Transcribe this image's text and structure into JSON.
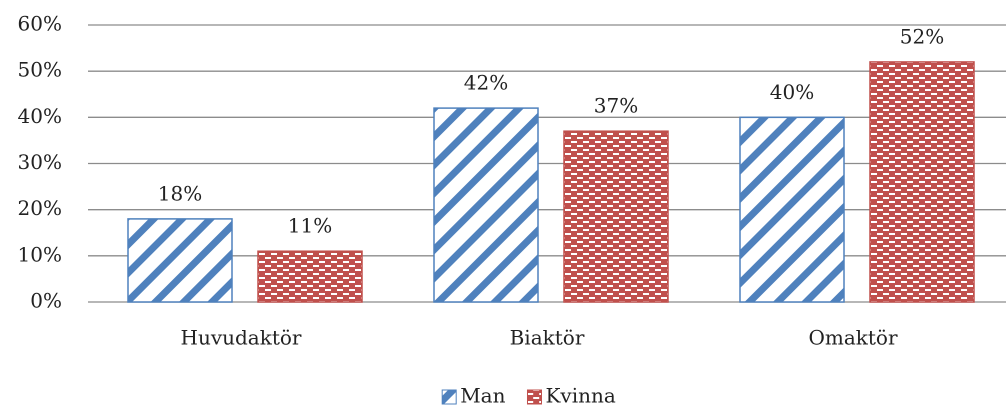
{
  "chart_data": {
    "type": "bar",
    "categories": [
      "Huvudaktör",
      "Biaktör",
      "Omaktör"
    ],
    "series": [
      {
        "name": "Man",
        "color": "#4f81bd",
        "values": [
          18,
          42,
          40
        ],
        "value_labels": [
          "18%",
          "42%",
          "40%"
        ]
      },
      {
        "name": "Kvinna",
        "color": "#c0504d",
        "values": [
          11,
          37,
          52
        ],
        "value_labels": [
          "11%",
          "37%",
          "52%"
        ]
      }
    ],
    "ylim": [
      0,
      60
    ],
    "yticks": [
      {
        "value": 0,
        "label": "0%"
      },
      {
        "value": 10,
        "label": "10%"
      },
      {
        "value": 20,
        "label": "20%"
      },
      {
        "value": 30,
        "label": "30%"
      },
      {
        "value": 40,
        "label": "40%"
      },
      {
        "value": 50,
        "label": "50%"
      },
      {
        "value": 60,
        "label": "60%"
      }
    ],
    "grid": true,
    "legend": "bottom"
  }
}
